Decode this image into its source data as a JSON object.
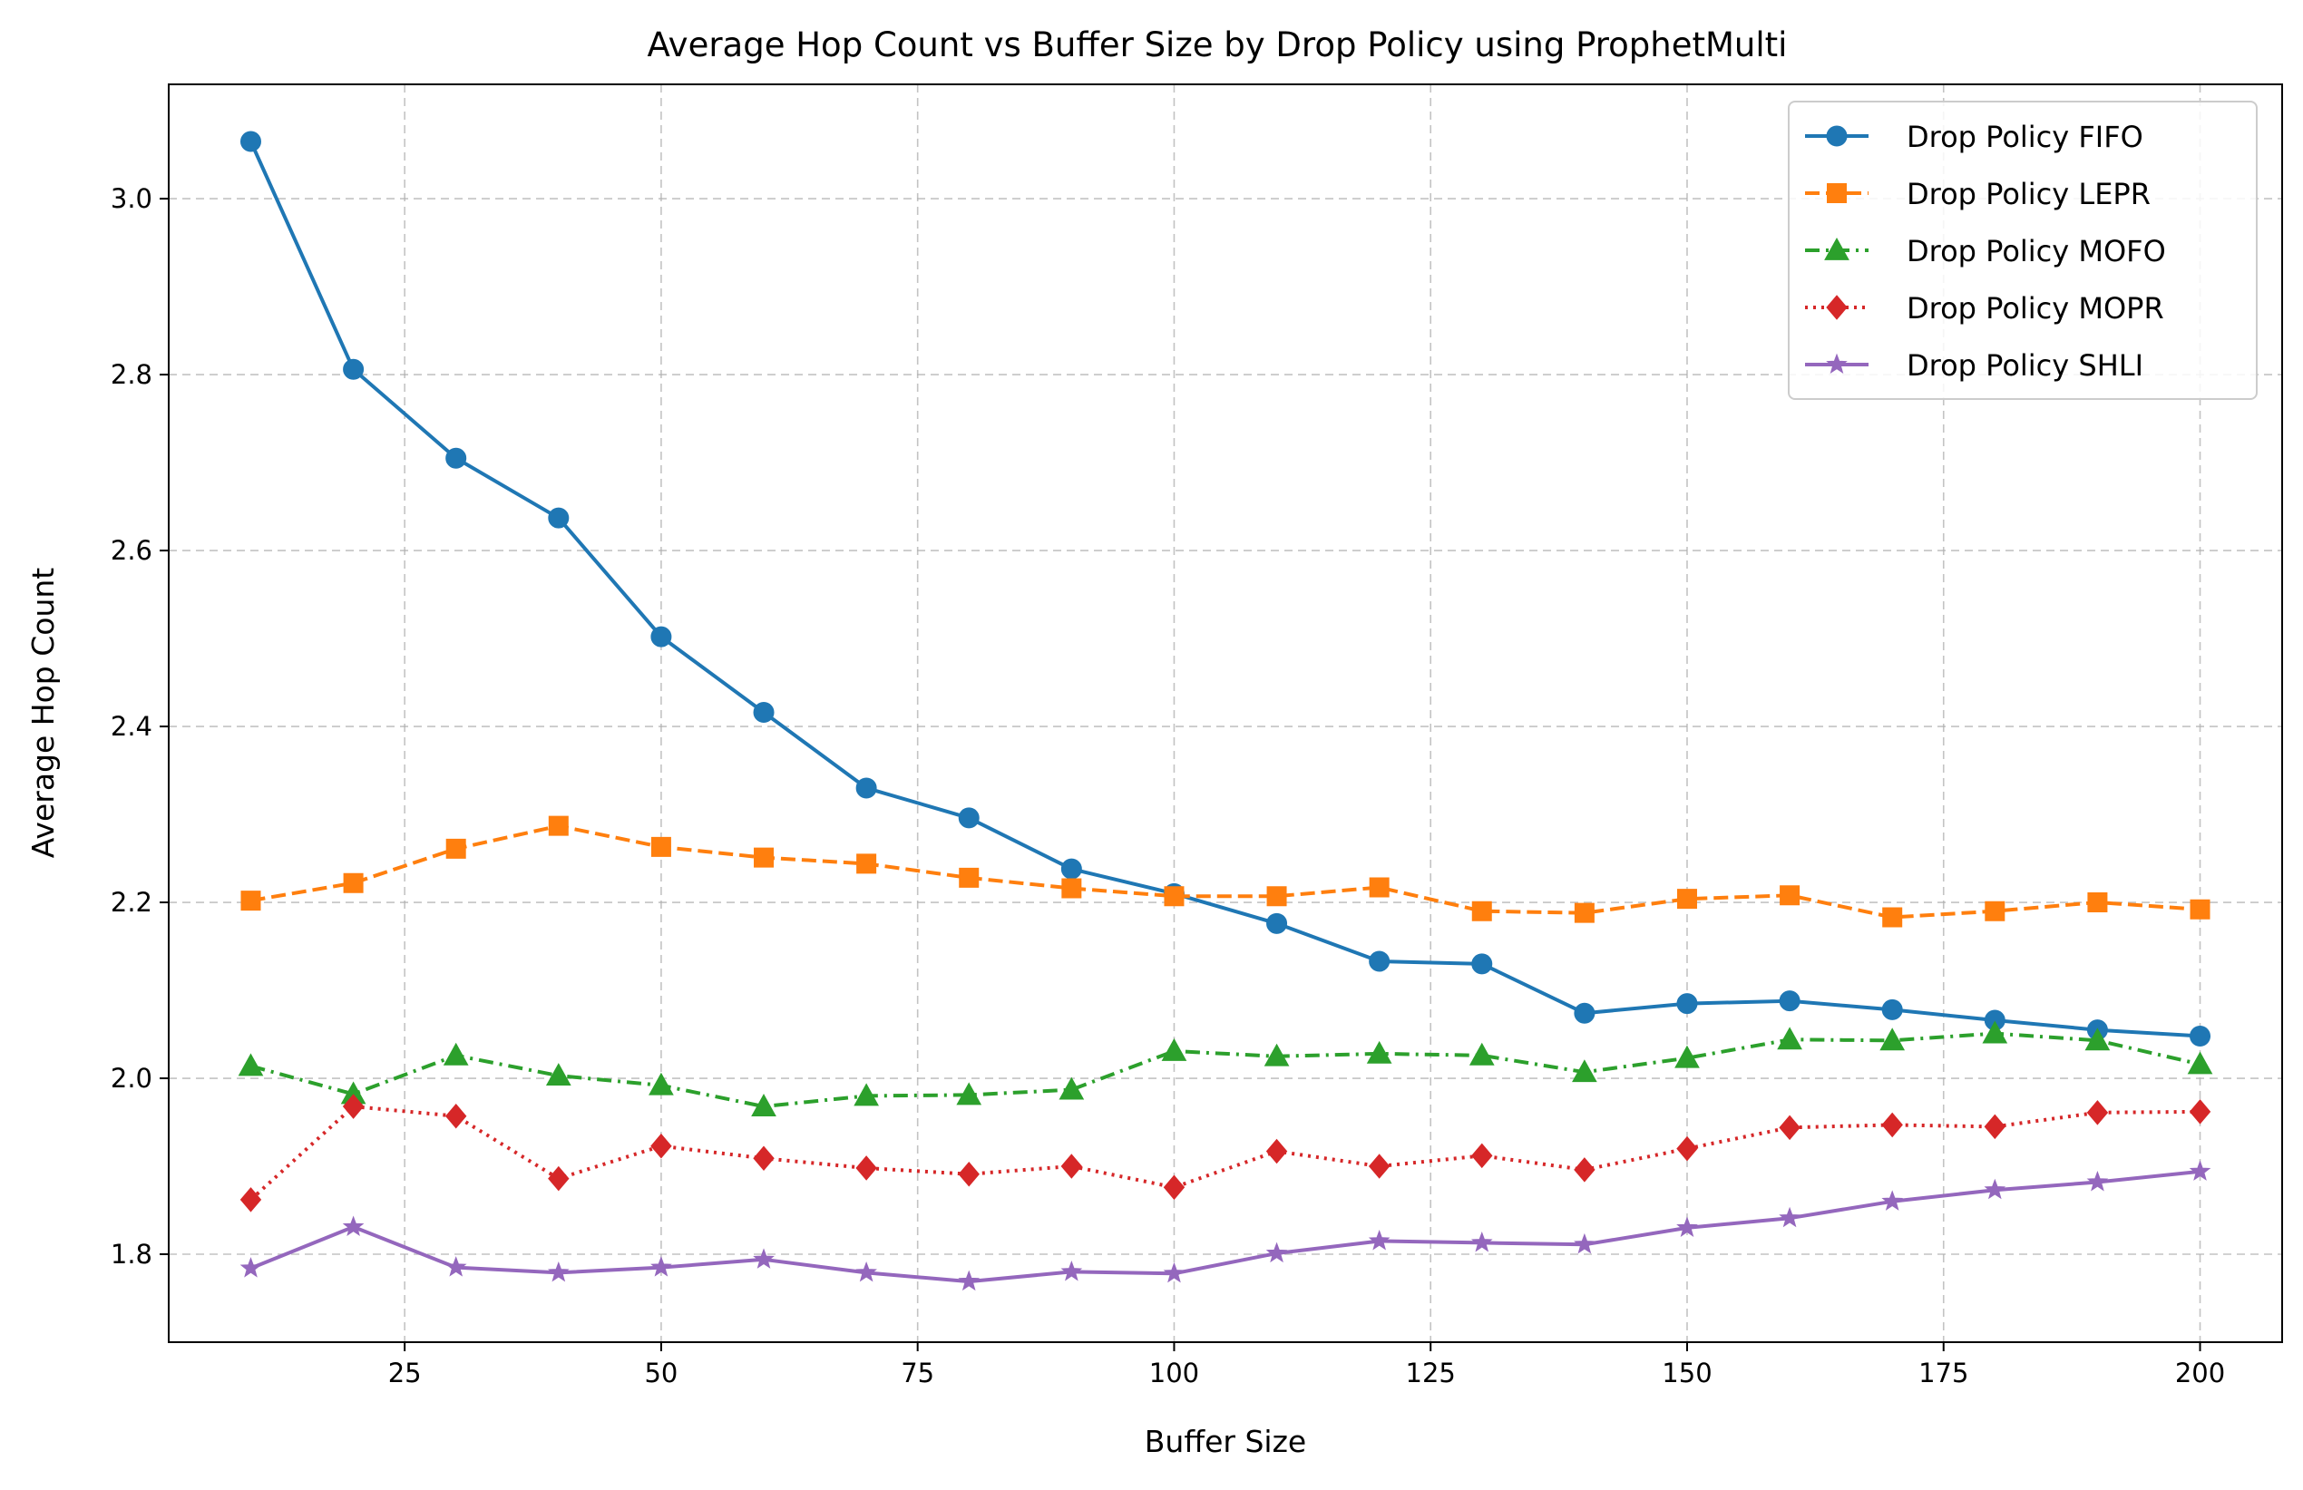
{
  "chart_data": {
    "type": "line",
    "title": "Average Hop Count vs Buffer Size by Drop Policy using ProphetMulti",
    "xlabel": "Buffer Size",
    "ylabel": "Average Hop Count",
    "xlim": [
      2,
      208
    ],
    "ylim": [
      1.7,
      3.13
    ],
    "xticks": [
      25,
      50,
      75,
      100,
      125,
      150,
      175,
      200
    ],
    "yticks": [
      1.8,
      2.0,
      2.2,
      2.4,
      2.6,
      2.8,
      3.0
    ],
    "ytick_labels": [
      "1.8",
      "2.0",
      "2.2",
      "2.4",
      "2.6",
      "2.8",
      "3.0"
    ],
    "grid": true,
    "legend_position": "top-right",
    "x": [
      10,
      20,
      30,
      40,
      50,
      60,
      70,
      80,
      90,
      100,
      110,
      120,
      130,
      140,
      150,
      160,
      170,
      180,
      190,
      200
    ],
    "series": [
      {
        "name": "Drop Policy FIFO",
        "color": "#1f77b4",
        "line_style": "solid",
        "marker": "circle",
        "values": [
          3.065,
          2.806,
          2.705,
          2.637,
          2.502,
          2.416,
          2.33,
          2.296,
          2.238,
          2.21,
          2.176,
          2.133,
          2.13,
          2.074,
          2.085,
          2.088,
          2.078,
          2.066,
          2.055,
          2.048
        ]
      },
      {
        "name": "Drop Policy LEPR",
        "color": "#ff7f0e",
        "line_style": "dashed",
        "marker": "square",
        "values": [
          2.202,
          2.222,
          2.261,
          2.287,
          2.263,
          2.251,
          2.244,
          2.228,
          2.216,
          2.207,
          2.207,
          2.217,
          2.19,
          2.188,
          2.204,
          2.208,
          2.183,
          2.19,
          2.2,
          2.192
        ]
      },
      {
        "name": "Drop Policy MOFO",
        "color": "#2ca02c",
        "line_style": "dashdot",
        "marker": "triangle",
        "values": [
          2.014,
          1.982,
          2.026,
          2.003,
          1.992,
          1.968,
          1.98,
          1.981,
          1.987,
          2.031,
          2.025,
          2.028,
          2.026,
          2.007,
          2.023,
          2.044,
          2.043,
          2.051,
          2.043,
          2.016
        ]
      },
      {
        "name": "Drop Policy MOPR",
        "color": "#d62728",
        "line_style": "dotted",
        "marker": "diamond",
        "values": [
          1.862,
          1.968,
          1.957,
          1.886,
          1.923,
          1.909,
          1.898,
          1.891,
          1.9,
          1.876,
          1.917,
          1.9,
          1.912,
          1.896,
          1.92,
          1.944,
          1.947,
          1.945,
          1.961,
          1.962
        ]
      },
      {
        "name": "Drop Policy SHLI",
        "color": "#9467bd",
        "line_style": "solid",
        "marker": "star",
        "values": [
          1.784,
          1.831,
          1.785,
          1.779,
          1.785,
          1.794,
          1.779,
          1.769,
          1.78,
          1.778,
          1.801,
          1.815,
          1.813,
          1.811,
          1.83,
          1.841,
          1.86,
          1.873,
          1.882,
          1.894
        ]
      }
    ]
  }
}
